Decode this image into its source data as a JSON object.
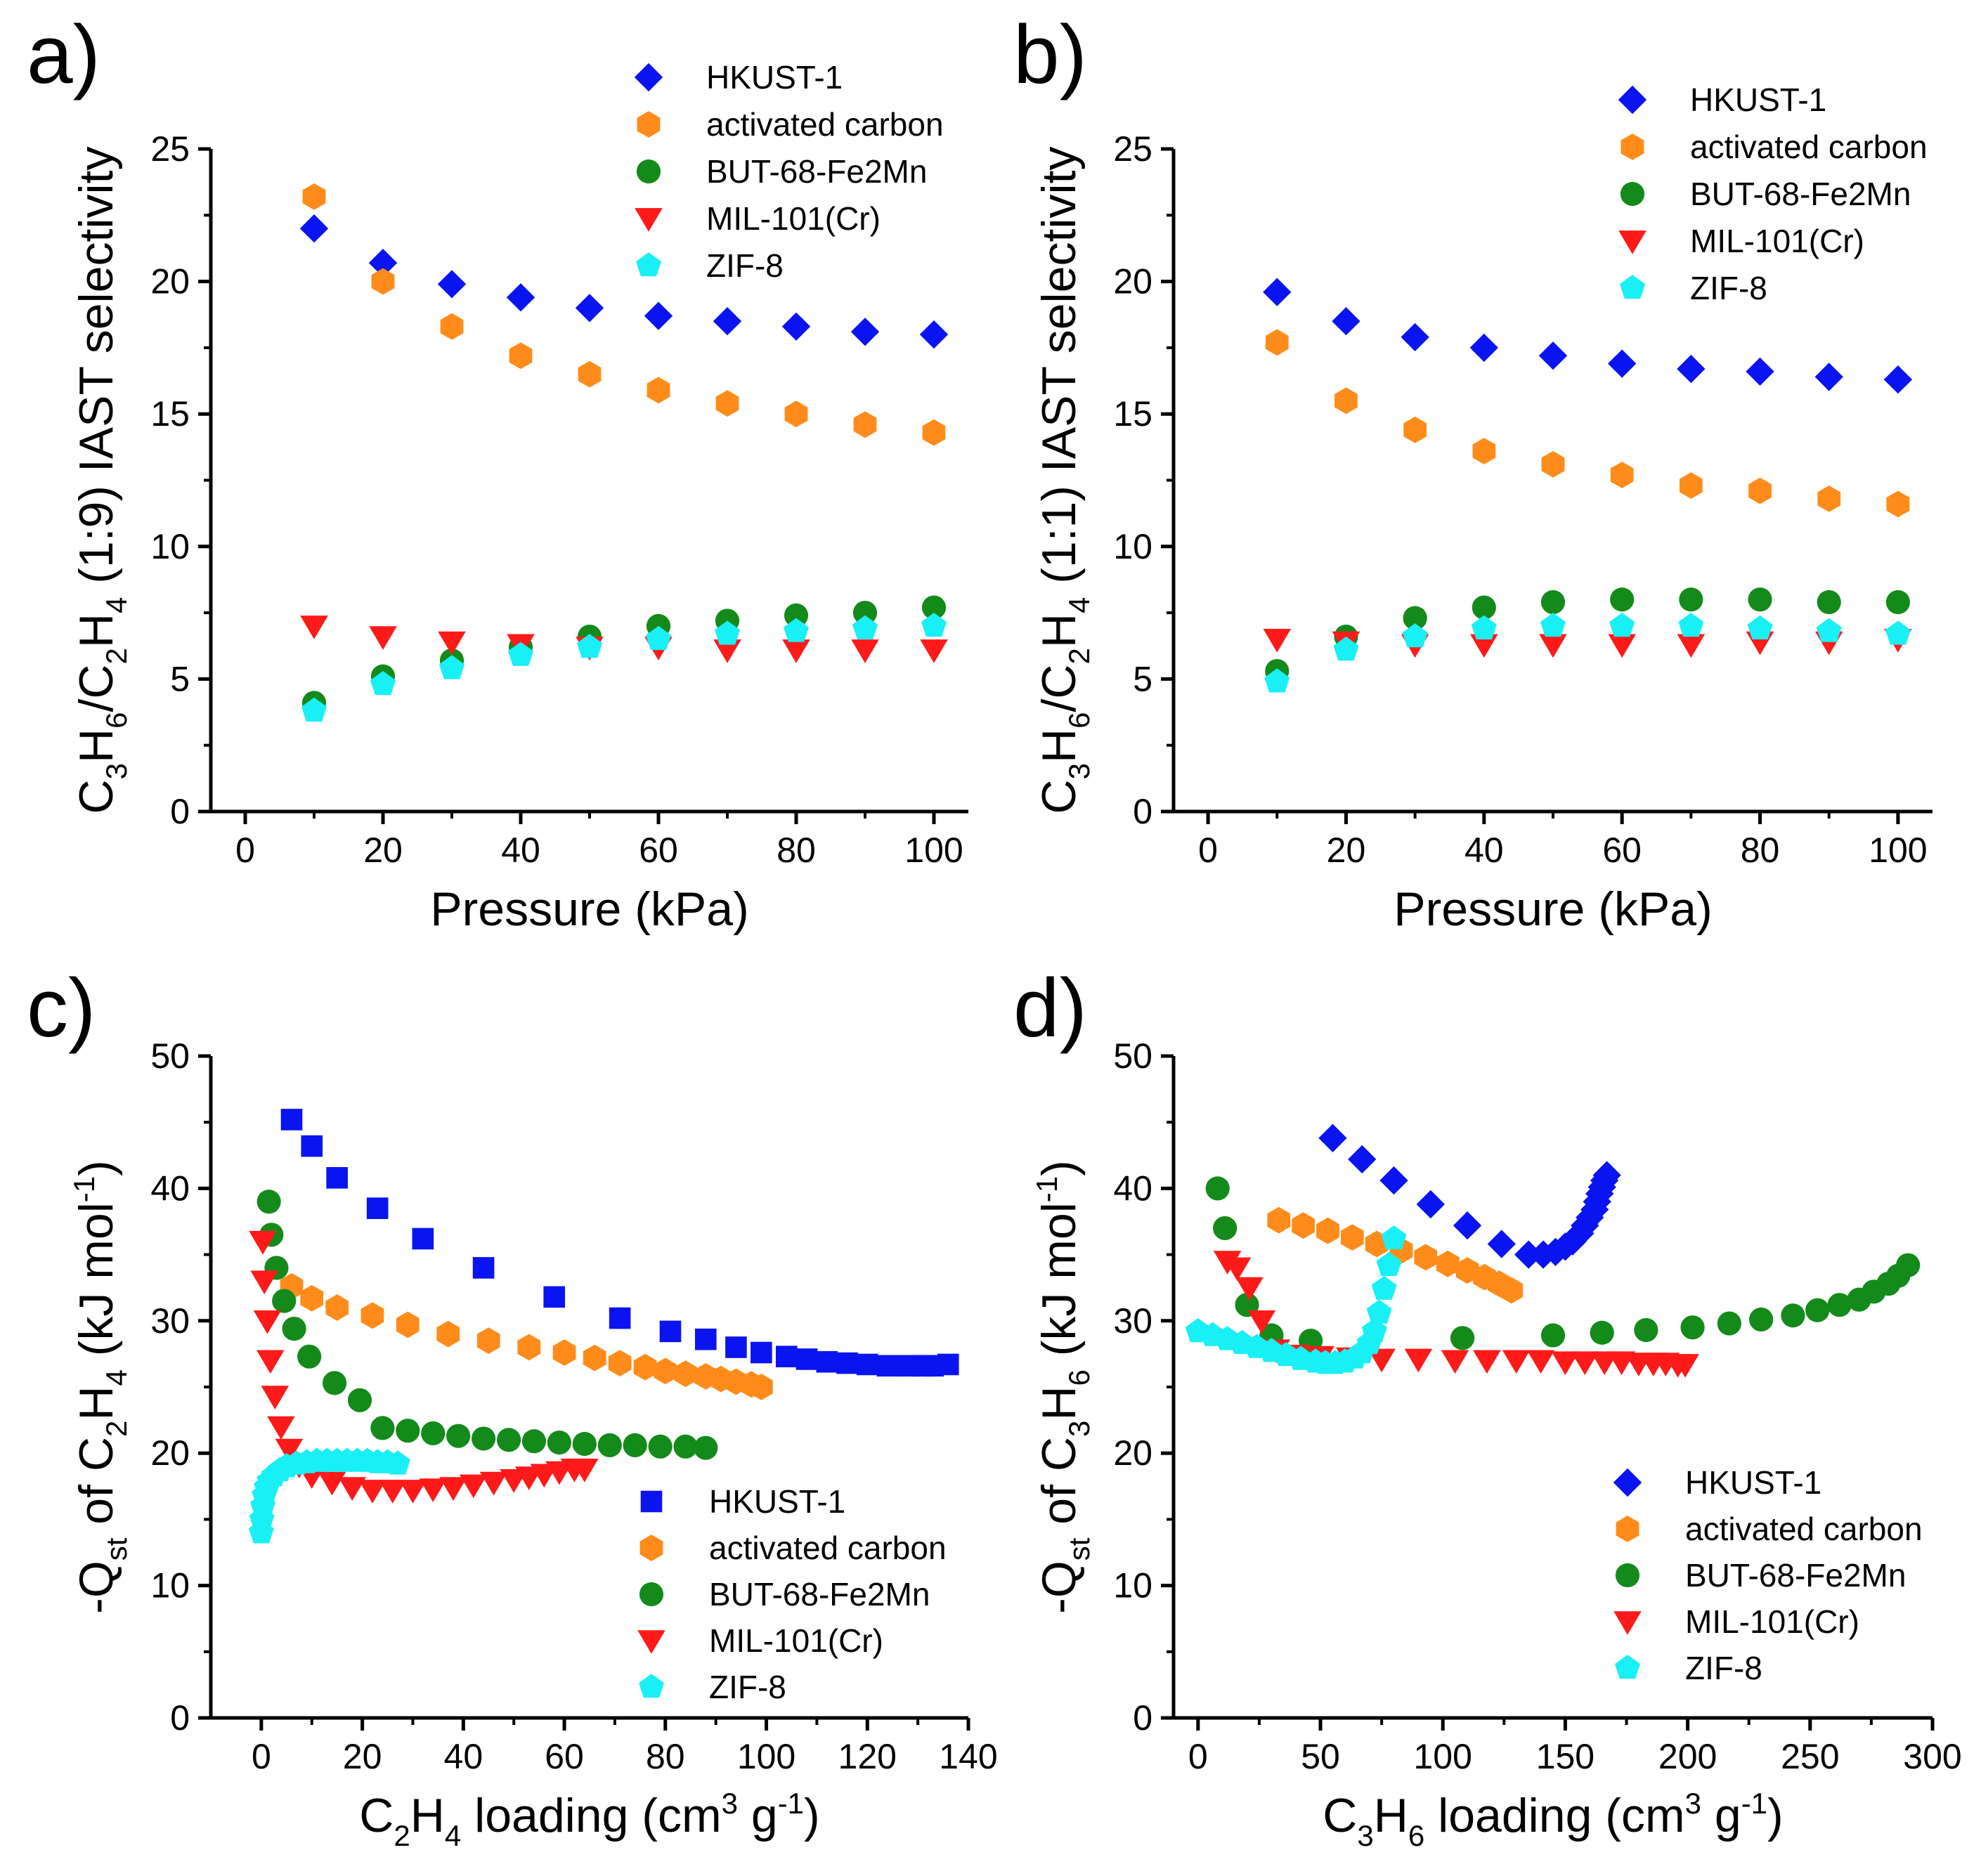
{
  "figure": {
    "colors": {
      "HKUST-1": "#0a14f0",
      "activated carbon": "#ff8c1a",
      "BUT-68-Fe2Mn": "#138a1a",
      "MIL-101(Cr)": "#ff1a1a",
      "ZIF-8": "#19f0f5"
    }
  },
  "chart_data": [
    {
      "panel": "a)",
      "type": "scatter",
      "xlabel": "Pressure (kPa)",
      "ylabel_parts": [
        "C",
        "3",
        "H",
        "6",
        "/C",
        "2",
        "H",
        "4",
        " (1:9) IAST selectivity"
      ],
      "xlim": [
        -5,
        105
      ],
      "ylim": [
        0,
        25
      ],
      "xticks": [
        0,
        20,
        40,
        60,
        80,
        100
      ],
      "yticks": [
        0,
        5,
        10,
        15,
        20,
        25
      ],
      "legend_position": "top-right",
      "series": [
        {
          "name": "HKUST-1",
          "marker": "diamond",
          "x": [
            10,
            20,
            30,
            40,
            50,
            60,
            70,
            80,
            90,
            100
          ],
          "y": [
            22.0,
            20.7,
            19.9,
            19.4,
            19.0,
            18.7,
            18.5,
            18.3,
            18.1,
            18.0
          ]
        },
        {
          "name": "activated carbon",
          "marker": "hexagon",
          "x": [
            10,
            20,
            30,
            40,
            50,
            60,
            70,
            80,
            90,
            100
          ],
          "y": [
            23.2,
            20.0,
            18.3,
            17.2,
            16.5,
            15.9,
            15.4,
            15.0,
            14.6,
            14.3
          ]
        },
        {
          "name": "BUT-68-Fe2Mn",
          "marker": "circle",
          "x": [
            10,
            20,
            30,
            40,
            50,
            60,
            70,
            80,
            90,
            100
          ],
          "y": [
            4.1,
            5.1,
            5.7,
            6.2,
            6.6,
            7.0,
            7.2,
            7.4,
            7.5,
            7.7
          ]
        },
        {
          "name": "MIL-101(Cr)",
          "marker": "triangle-down",
          "x": [
            10,
            20,
            30,
            40,
            50,
            60,
            70,
            80,
            90,
            100
          ],
          "y": [
            7.0,
            6.6,
            6.4,
            6.3,
            6.2,
            6.2,
            6.1,
            6.1,
            6.1,
            6.1
          ]
        },
        {
          "name": "ZIF-8",
          "marker": "pentagon",
          "x": [
            10,
            20,
            30,
            40,
            50,
            60,
            70,
            80,
            90,
            100
          ],
          "y": [
            3.8,
            4.8,
            5.4,
            5.9,
            6.2,
            6.5,
            6.7,
            6.8,
            6.9,
            7.0
          ]
        }
      ]
    },
    {
      "panel": "b)",
      "type": "scatter",
      "xlabel": "Pressure (kPa)",
      "ylabel_parts": [
        "C",
        "3",
        "H",
        "6",
        "/C",
        "2",
        "H",
        "4",
        " (1:1) IAST selectivity"
      ],
      "xlim": [
        -5,
        105
      ],
      "ylim": [
        0,
        25
      ],
      "xticks": [
        0,
        20,
        40,
        60,
        80,
        100
      ],
      "yticks": [
        0,
        5,
        10,
        15,
        20,
        25
      ],
      "legend_position": "top-right",
      "series": [
        {
          "name": "HKUST-1",
          "marker": "diamond",
          "x": [
            10,
            20,
            30,
            40,
            50,
            60,
            70,
            80,
            90,
            100
          ],
          "y": [
            19.6,
            18.5,
            17.9,
            17.5,
            17.2,
            16.9,
            16.7,
            16.6,
            16.4,
            16.3
          ]
        },
        {
          "name": "activated carbon",
          "marker": "hexagon",
          "x": [
            10,
            20,
            30,
            40,
            50,
            60,
            70,
            80,
            90,
            100
          ],
          "y": [
            17.7,
            15.5,
            14.4,
            13.6,
            13.1,
            12.7,
            12.3,
            12.1,
            11.8,
            11.6
          ]
        },
        {
          "name": "BUT-68-Fe2Mn",
          "marker": "circle",
          "x": [
            10,
            20,
            30,
            40,
            50,
            60,
            70,
            80,
            90,
            100
          ],
          "y": [
            5.3,
            6.6,
            7.3,
            7.7,
            7.9,
            8.0,
            8.0,
            8.0,
            7.9,
            7.9
          ]
        },
        {
          "name": "MIL-101(Cr)",
          "marker": "triangle-down",
          "x": [
            10,
            20,
            30,
            40,
            50,
            60,
            70,
            80,
            90,
            100
          ],
          "y": [
            6.5,
            6.4,
            6.3,
            6.3,
            6.3,
            6.3,
            6.3,
            6.4,
            6.4,
            6.5
          ]
        },
        {
          "name": "ZIF-8",
          "marker": "pentagon",
          "x": [
            10,
            20,
            30,
            40,
            50,
            60,
            70,
            80,
            90,
            100
          ],
          "y": [
            4.9,
            6.1,
            6.6,
            6.9,
            7.0,
            7.0,
            7.0,
            6.9,
            6.8,
            6.7
          ]
        }
      ]
    },
    {
      "panel": "c)",
      "type": "scatter",
      "xlabel_parts": [
        "C",
        "2",
        "H",
        "4",
        " loading (cm",
        "3",
        " g",
        "-1",
        ")"
      ],
      "ylabel_parts": [
        "-Q",
        "st",
        " of C",
        "2",
        "H",
        "4",
        " (kJ mol",
        "-1",
        ")"
      ],
      "xlim": [
        -10,
        140
      ],
      "ylim": [
        0,
        50
      ],
      "xticks": [
        0,
        20,
        40,
        60,
        80,
        100,
        120,
        140
      ],
      "yticks": [
        0,
        10,
        20,
        30,
        40,
        50
      ],
      "legend_position": "bottom-right",
      "series": [
        {
          "name": "HKUST-1",
          "marker": "square",
          "x": [
            6,
            10,
            15,
            23,
            32,
            44,
            58,
            71,
            81,
            88,
            94,
            99,
            104,
            108,
            112,
            116,
            120,
            124,
            128,
            131,
            133,
            136
          ],
          "y": [
            45.2,
            43.2,
            40.8,
            38.5,
            36.2,
            34.0,
            31.8,
            30.2,
            29.2,
            28.6,
            28.0,
            27.6,
            27.3,
            27.1,
            26.9,
            26.8,
            26.7,
            26.6,
            26.6,
            26.6,
            26.6,
            26.7
          ]
        },
        {
          "name": "activated carbon",
          "marker": "hexagon",
          "x": [
            6,
            10,
            15,
            22,
            29,
            37,
            45,
            53,
            60,
            66,
            71,
            76,
            80,
            84,
            88,
            91,
            94,
            97,
            99
          ],
          "y": [
            32.6,
            31.7,
            31.0,
            30.4,
            29.7,
            29.0,
            28.5,
            28.0,
            27.6,
            27.2,
            26.8,
            26.5,
            26.2,
            26.0,
            25.8,
            25.6,
            25.4,
            25.2,
            25.0
          ]
        },
        {
          "name": "BUT-68-Fe2Mn",
          "marker": "circle",
          "x": [
            1.5,
            2.0,
            3.0,
            4.5,
            6.5,
            9.5,
            14.5,
            19.5,
            24,
            29,
            34,
            39,
            44,
            49,
            54,
            59,
            64,
            69,
            74,
            79,
            84,
            88
          ],
          "y": [
            39.0,
            36.5,
            34.0,
            31.5,
            29.4,
            27.3,
            25.3,
            24.0,
            21.9,
            21.7,
            21.5,
            21.3,
            21.1,
            21.0,
            20.9,
            20.8,
            20.7,
            20.6,
            20.6,
            20.5,
            20.5,
            20.4
          ]
        },
        {
          "name": "MIL-101(Cr)",
          "marker": "triangle-down",
          "x": [
            0.3,
            0.6,
            1.2,
            1.8,
            2.7,
            3.9,
            5.5,
            7.5,
            10,
            14,
            18,
            22,
            26,
            30,
            34,
            38,
            42,
            46,
            50,
            53,
            56,
            59,
            62,
            64
          ],
          "y": [
            36.0,
            33.0,
            30.0,
            27.0,
            24.3,
            22.0,
            20.3,
            19.1,
            18.3,
            17.8,
            17.4,
            17.2,
            17.2,
            17.2,
            17.3,
            17.4,
            17.6,
            17.8,
            18.0,
            18.2,
            18.4,
            18.6,
            18.8,
            18.8
          ]
        },
        {
          "name": "ZIF-8",
          "marker": "pentagon",
          "x": [
            0,
            0.1,
            0.3,
            0.6,
            1.0,
            1.6,
            2.5,
            3.7,
            5,
            7,
            9,
            11,
            13,
            15,
            17,
            19,
            21,
            23,
            25,
            27
          ],
          "y": [
            14.0,
            15.0,
            16.0,
            16.8,
            17.4,
            17.9,
            18.3,
            18.7,
            19.0,
            19.2,
            19.3,
            19.4,
            19.4,
            19.4,
            19.4,
            19.4,
            19.4,
            19.3,
            19.3,
            19.2
          ]
        }
      ]
    },
    {
      "panel": "d)",
      "type": "scatter",
      "xlabel_parts": [
        "C",
        "3",
        "H",
        "6",
        " loading (cm",
        "3",
        " g",
        "-1",
        ")"
      ],
      "ylabel_parts": [
        "-Q",
        "st",
        " of C",
        "3",
        "H",
        "6",
        " (kJ mol",
        "-1",
        ")"
      ],
      "xlim": [
        -10,
        300
      ],
      "ylim": [
        0,
        50
      ],
      "xticks": [
        0,
        50,
        100,
        150,
        200,
        250,
        300
      ],
      "yticks": [
        0,
        10,
        20,
        30,
        40,
        50
      ],
      "legend_position": "bottom-right",
      "series": [
        {
          "name": "HKUST-1",
          "marker": "diamond",
          "x": [
            55,
            67,
            80,
            95,
            110,
            124,
            135,
            141,
            146,
            150,
            153,
            156,
            158,
            160,
            162,
            163,
            164,
            165,
            166,
            167
          ],
          "y": [
            43.8,
            42.2,
            40.6,
            38.8,
            37.2,
            35.8,
            35.0,
            35.0,
            35.2,
            35.6,
            36.0,
            36.6,
            37.2,
            37.8,
            38.4,
            39.0,
            39.6,
            40.1,
            40.6,
            41.0
          ]
        },
        {
          "name": "activated carbon",
          "marker": "hexagon",
          "x": [
            33,
            43,
            53,
            63,
            73,
            83,
            93,
            102,
            110,
            117,
            123,
            128
          ],
          "y": [
            37.6,
            37.2,
            36.8,
            36.3,
            35.8,
            35.3,
            34.8,
            34.3,
            33.8,
            33.3,
            32.8,
            32.3
          ]
        },
        {
          "name": "BUT-68-Fe2Mn",
          "marker": "circle",
          "x": [
            8,
            11,
            20,
            30,
            46,
            108,
            145,
            165,
            183,
            202,
            217,
            230,
            243,
            253,
            262,
            270,
            276,
            282,
            286,
            290
          ],
          "y": [
            40.0,
            37.0,
            31.2,
            28.9,
            28.5,
            28.7,
            28.9,
            29.1,
            29.3,
            29.5,
            29.8,
            30.1,
            30.4,
            30.8,
            31.2,
            31.6,
            32.2,
            32.8,
            33.4,
            34.2
          ]
        },
        {
          "name": "MIL-101(Cr)",
          "marker": "triangle-down",
          "x": [
            12,
            16,
            21,
            26,
            32,
            40,
            50,
            62,
            75,
            90,
            105,
            118,
            130,
            140,
            150,
            158,
            166,
            173,
            180,
            186,
            191,
            196,
            199
          ],
          "y": [
            34.5,
            34.0,
            32.5,
            30.0,
            27.8,
            27.4,
            27.3,
            27.2,
            27.1,
            27.1,
            27.0,
            27.0,
            27.0,
            27.0,
            26.9,
            26.9,
            26.9,
            26.9,
            26.8,
            26.8,
            26.8,
            26.7,
            26.7
          ]
        },
        {
          "name": "ZIF-8",
          "marker": "pentagon",
          "x": [
            0,
            6,
            12,
            18,
            24,
            30,
            36,
            42,
            48,
            52,
            56,
            60,
            64,
            67,
            70,
            72,
            74,
            76,
            78,
            80
          ],
          "y": [
            29.2,
            28.9,
            28.6,
            28.3,
            28.0,
            27.7,
            27.4,
            27.1,
            26.9,
            26.8,
            26.8,
            26.9,
            27.2,
            27.6,
            28.3,
            29.2,
            30.6,
            32.4,
            34.2,
            36.2
          ]
        }
      ]
    }
  ]
}
